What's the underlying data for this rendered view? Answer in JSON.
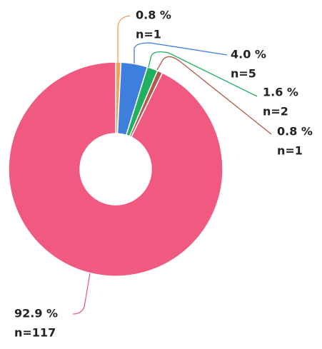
{
  "chart_data": {
    "type": "donut",
    "values": [
      0.8,
      4.0,
      1.6,
      0.8,
      92.9
    ],
    "value_labels": [
      "0.8 %",
      "4.0 %",
      "1.6 %",
      "0.8 %",
      "92.9 %"
    ],
    "count_labels": [
      "n=1",
      "n=5",
      "n=2",
      "n=1",
      "n=117"
    ],
    "colors": [
      "#f5a05a",
      "#3f7fdc",
      "#20b060",
      "#b05a4a",
      "#f05a80"
    ]
  }
}
